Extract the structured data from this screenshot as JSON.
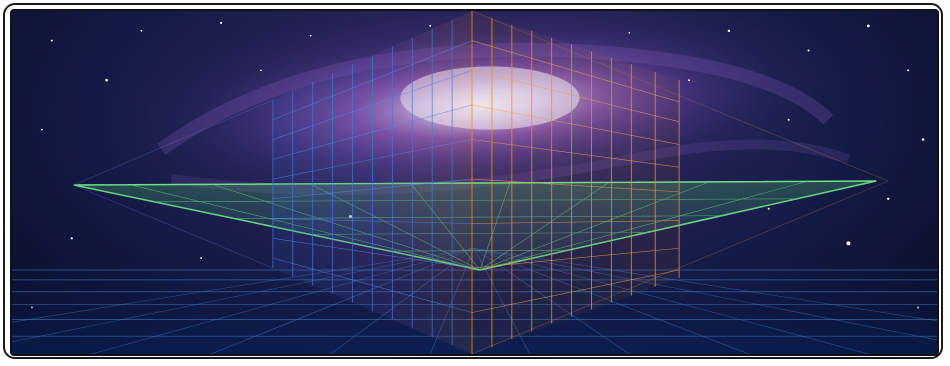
{
  "image": {
    "subject": "illustration",
    "colors": {
      "space_dark": "#070b26",
      "space_mid": "#1e2b6b",
      "galaxy_purple": "#8b4fb0",
      "galaxy_core": "#f2f0ff",
      "grid_green": "#4fd07a",
      "grid_blue": "#3a78d8",
      "grid_orange": "#f08a2a",
      "frame": "#1a1a1a"
    }
  }
}
